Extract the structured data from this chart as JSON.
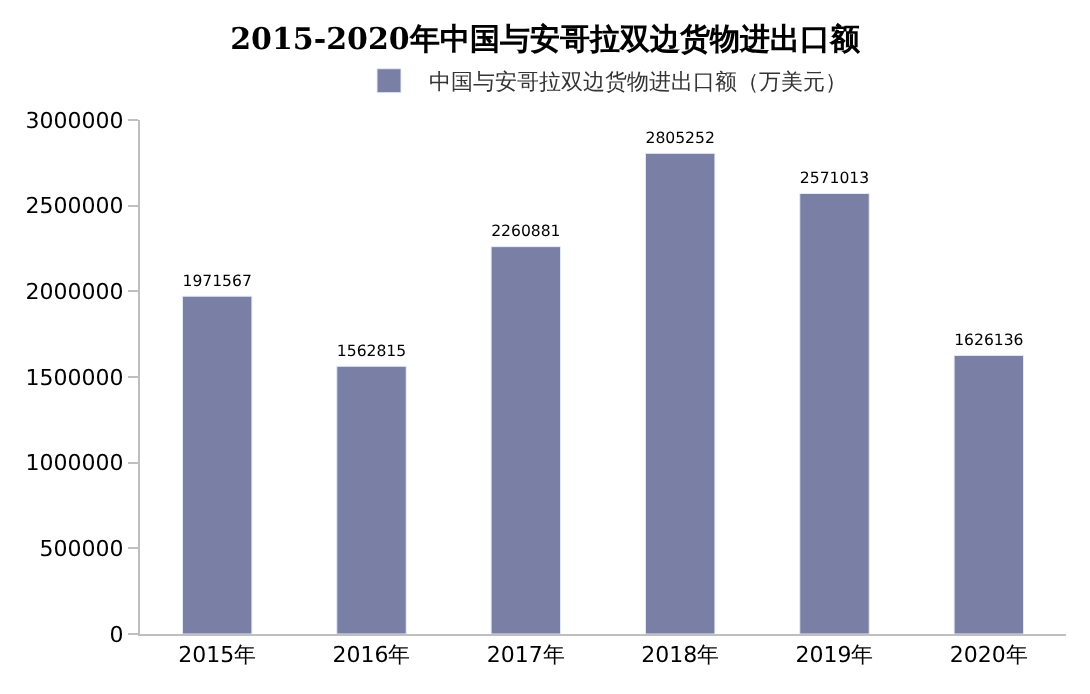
{
  "chart_data": {
    "type": "bar",
    "title": "2015-2020年中国与安哥拉双边货物进出口额",
    "categories": [
      "2015年",
      "2016年",
      "2017年",
      "2018年",
      "2019年",
      "2020年"
    ],
    "series": [
      {
        "name": "中国与安哥拉双边货物进出口额（万美元）",
        "color": "#7a7fa6",
        "values": [
          1971567,
          1562815,
          2260881,
          2805252,
          2571013,
          1626136
        ]
      }
    ],
    "ylim": [
      0,
      3000000
    ],
    "yticks": [
      0,
      500000,
      1000000,
      1500000,
      2000000,
      2500000,
      3000000
    ],
    "data_labels": true,
    "legend": "top",
    "grid": false
  }
}
